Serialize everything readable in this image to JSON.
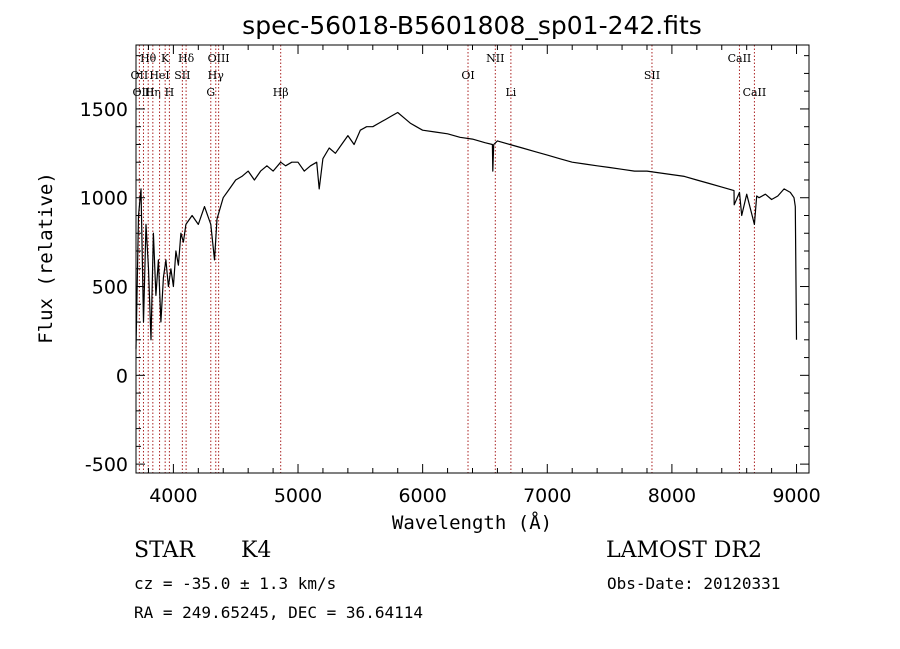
{
  "chart_data": {
    "type": "line",
    "title": "spec-56018-B5601808_sp01-242.fits",
    "xlabel": "Wavelength (Å)",
    "ylabel": "Flux (relative)",
    "xlim": [
      3700,
      9100
    ],
    "ylim": [
      -550,
      1860
    ],
    "xticks": [
      4000,
      5000,
      6000,
      7000,
      8000,
      9000
    ],
    "yticks": [
      -500,
      0,
      500,
      1000,
      1500
    ],
    "grid": false,
    "series": [
      {
        "x": [
          3700,
          3720,
          3740,
          3760,
          3780,
          3800,
          3820,
          3840,
          3860,
          3880,
          3900,
          3920,
          3940,
          3960,
          3980,
          4000,
          4020,
          4040,
          4060,
          4080,
          4100,
          4150,
          4200,
          4250,
          4300,
          4330,
          4350,
          4400,
          4450,
          4500,
          4550,
          4600,
          4650,
          4700,
          4750,
          4800,
          4861,
          4900,
          4950,
          5000,
          5050,
          5100,
          5150,
          5170,
          5200,
          5250,
          5300,
          5350,
          5400,
          5450,
          5500,
          5550,
          5600,
          5650,
          5700,
          5750,
          5800,
          5850,
          5900,
          5950,
          6000,
          6100,
          6200,
          6300,
          6400,
          6500,
          6560,
          6563,
          6570,
          6600,
          6700,
          6800,
          6900,
          7000,
          7100,
          7200,
          7300,
          7400,
          7500,
          7600,
          7700,
          7800,
          7900,
          8000,
          8100,
          8200,
          8300,
          8400,
          8498,
          8500,
          8542,
          8560,
          8600,
          8662,
          8680,
          8700,
          8750,
          8800,
          8850,
          8900,
          8950,
          8980,
          8990,
          9000
        ],
        "values": [
          150,
          900,
          1050,
          300,
          850,
          600,
          200,
          800,
          450,
          650,
          300,
          550,
          650,
          500,
          600,
          500,
          700,
          620,
          800,
          750,
          850,
          900,
          850,
          950,
          850,
          650,
          880,
          1000,
          1050,
          1100,
          1120,
          1150,
          1100,
          1150,
          1180,
          1150,
          1200,
          1180,
          1200,
          1200,
          1150,
          1180,
          1200,
          1050,
          1220,
          1280,
          1250,
          1300,
          1350,
          1300,
          1380,
          1400,
          1400,
          1420,
          1440,
          1460,
          1480,
          1450,
          1420,
          1400,
          1380,
          1370,
          1360,
          1340,
          1330,
          1310,
          1300,
          1150,
          1300,
          1320,
          1300,
          1280,
          1260,
          1240,
          1220,
          1200,
          1190,
          1180,
          1170,
          1160,
          1150,
          1150,
          1140,
          1130,
          1120,
          1100,
          1080,
          1060,
          1040,
          960,
          1030,
          900,
          1020,
          850,
          1010,
          1000,
          1020,
          990,
          1010,
          1050,
          1030,
          1000,
          950,
          200
        ]
      }
    ],
    "lines": [
      {
        "label": "Hθ",
        "x": 3798,
        "row": 1
      },
      {
        "label": "OII",
        "x": 3727,
        "row": 2
      },
      {
        "label": "OIII",
        "x": 3760,
        "row": 3
      },
      {
        "label": "Hη",
        "x": 3835,
        "row": 3
      },
      {
        "label": "HeI",
        "x": 3889,
        "row": 2
      },
      {
        "label": "K",
        "x": 3934,
        "row": 1
      },
      {
        "label": "H",
        "x": 3968,
        "row": 3
      },
      {
        "label": "SII",
        "x": 4072,
        "row": 2
      },
      {
        "label": "Hδ",
        "x": 4102,
        "row": 1
      },
      {
        "label": "G",
        "x": 4300,
        "row": 3
      },
      {
        "label": "Hγ",
        "x": 4340,
        "row": 2
      },
      {
        "label": "OIII",
        "x": 4363,
        "row": 1
      },
      {
        "label": "Hβ",
        "x": 4861,
        "row": 3
      },
      {
        "label": "OI",
        "x": 6364,
        "row": 2
      },
      {
        "label": "NII",
        "x": 6583,
        "row": 1
      },
      {
        "label": "Li",
        "x": 6708,
        "row": 3
      },
      {
        "label": "SII",
        "x": 7840,
        "row": 2
      },
      {
        "label": "CaII",
        "x": 8542,
        "row": 1
      },
      {
        "label": "CaII",
        "x": 8662,
        "row": 3
      }
    ]
  },
  "info": {
    "class": "STAR",
    "subclass": "K4",
    "survey": "LAMOST DR2",
    "cz": "cz = -35.0 ± 1.3 km/s",
    "obs_date": "Obs-Date: 20120331",
    "radec": "RA = 249.65245, DEC =  36.64114"
  },
  "colors": {
    "line_markers": "#aa2222",
    "spectrum": "#000000"
  }
}
